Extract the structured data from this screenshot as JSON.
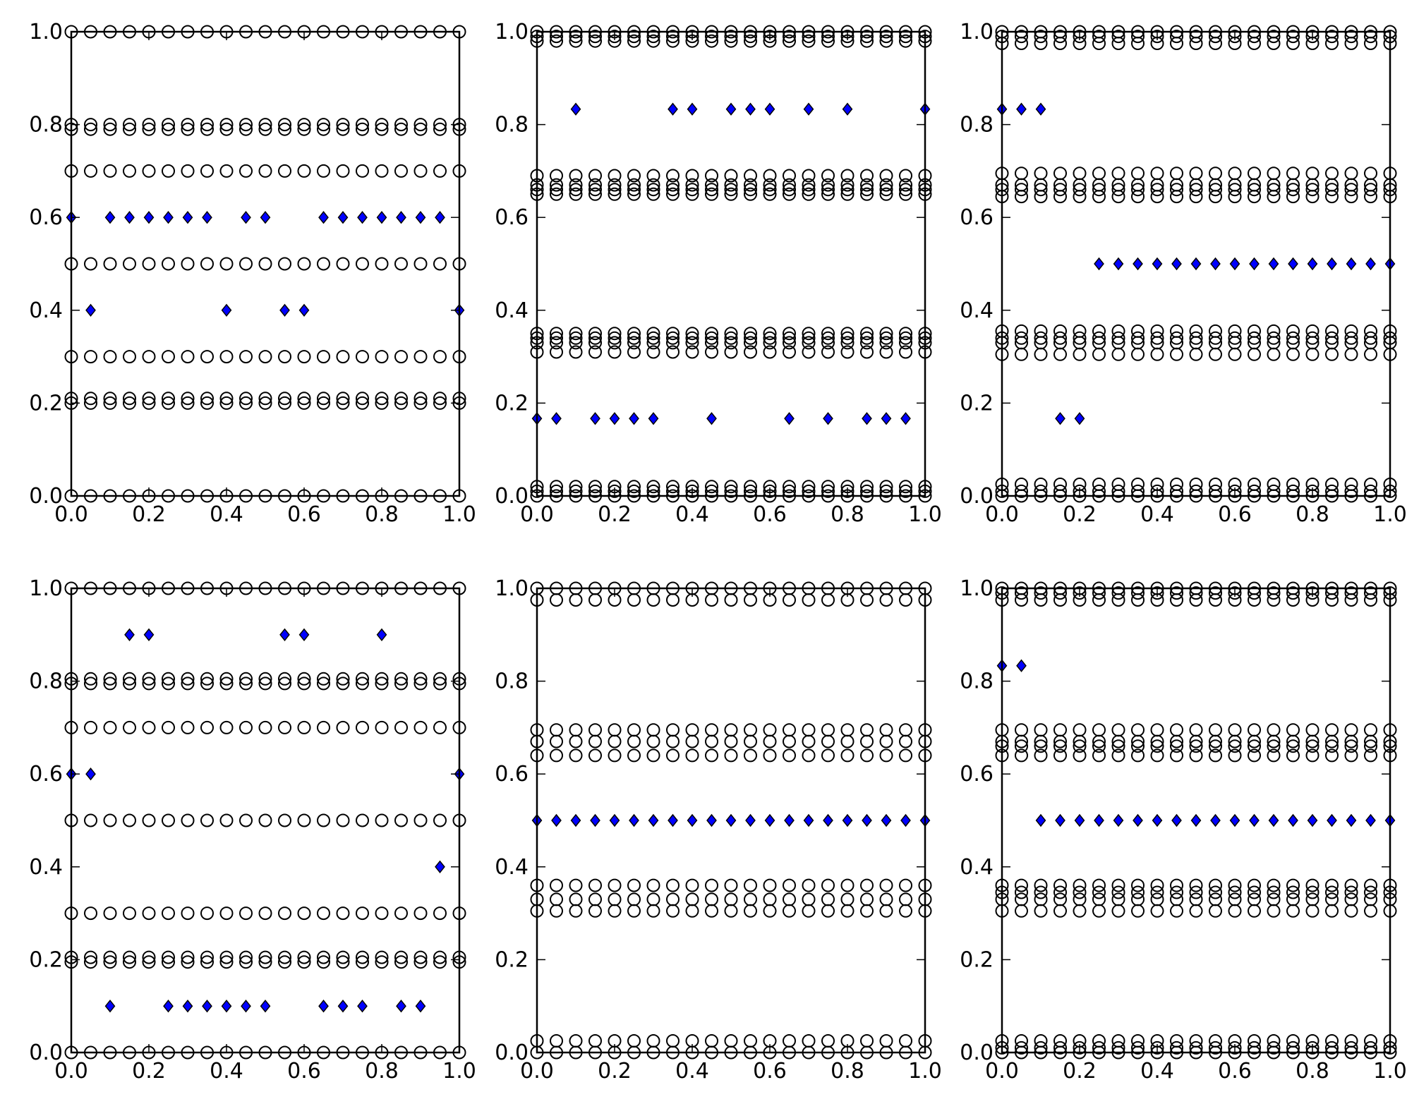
{
  "figure": {
    "layout": "2x3 grid",
    "marker_colors": {
      "circle_edge": "#000000",
      "circle_fill": "#ffffff",
      "diamond_fill": "#0000ff",
      "diamond_edge": "#000000"
    },
    "axis_ticks": [
      "0.0",
      "0.2",
      "0.4",
      "0.6",
      "0.8",
      "1.0"
    ]
  },
  "chart_data": [
    {
      "type": "scatter",
      "xlim": [
        0,
        1
      ],
      "ylim": [
        0,
        1
      ],
      "grid": false,
      "x_step": 0.05,
      "circle_rows": [
        0.0,
        0.2,
        0.21,
        0.3,
        0.5,
        0.7,
        0.79,
        0.8,
        1.0
      ],
      "diamonds": {
        "x": [
          0.0,
          0.05,
          0.1,
          0.15,
          0.2,
          0.25,
          0.3,
          0.35,
          0.4,
          0.45,
          0.5,
          0.55,
          0.6,
          0.65,
          0.7,
          0.75,
          0.8,
          0.85,
          0.9,
          0.95,
          1.0
        ],
        "y": [
          0.6,
          0.4,
          0.6,
          0.6,
          0.6,
          0.6,
          0.6,
          0.6,
          0.4,
          0.6,
          0.6,
          0.4,
          0.4,
          0.6,
          0.6,
          0.6,
          0.6,
          0.6,
          0.6,
          0.6,
          0.4
        ]
      }
    },
    {
      "type": "scatter",
      "xlim": [
        0,
        1
      ],
      "ylim": [
        0,
        1
      ],
      "grid": false,
      "x_step": 0.05,
      "circle_rows": [
        0.0,
        0.01,
        0.02,
        0.31,
        0.33,
        0.34,
        0.35,
        0.65,
        0.66,
        0.67,
        0.69,
        0.98,
        0.99,
        1.0
      ],
      "diamonds": {
        "x": [
          0.0,
          0.05,
          0.1,
          0.15,
          0.2,
          0.25,
          0.3,
          0.35,
          0.4,
          0.45,
          0.5,
          0.55,
          0.6,
          0.65,
          0.7,
          0.75,
          0.8,
          0.85,
          0.9,
          0.95,
          1.0
        ],
        "y": [
          0.1667,
          0.1667,
          0.8333,
          0.1667,
          0.1667,
          0.1667,
          0.1667,
          0.8333,
          0.8333,
          0.1667,
          0.8333,
          0.8333,
          0.8333,
          0.1667,
          0.8333,
          0.1667,
          0.8333,
          0.1667,
          0.1667,
          0.1667,
          0.8333
        ]
      }
    },
    {
      "type": "scatter",
      "xlim": [
        0,
        1
      ],
      "ylim": [
        0,
        1
      ],
      "grid": false,
      "x_step": 0.05,
      "circle_rows": [
        0.0,
        0.01,
        0.025,
        0.305,
        0.33,
        0.34,
        0.355,
        0.645,
        0.66,
        0.67,
        0.695,
        0.975,
        0.99,
        1.0
      ],
      "diamonds": {
        "x": [
          0.0,
          0.05,
          0.1,
          0.15,
          0.2,
          0.25,
          0.3,
          0.35,
          0.4,
          0.45,
          0.5,
          0.55,
          0.6,
          0.65,
          0.7,
          0.75,
          0.8,
          0.85,
          0.9,
          0.95,
          1.0
        ],
        "y": [
          0.8333,
          0.8333,
          0.8333,
          0.1667,
          0.1667,
          0.5,
          0.5,
          0.5,
          0.5,
          0.5,
          0.5,
          0.5,
          0.5,
          0.5,
          0.5,
          0.5,
          0.5,
          0.5,
          0.5,
          0.5,
          0.5
        ]
      }
    },
    {
      "type": "scatter",
      "xlim": [
        0,
        1
      ],
      "ylim": [
        0,
        1
      ],
      "grid": false,
      "x_step": 0.05,
      "circle_rows": [
        0.0,
        0.195,
        0.205,
        0.3,
        0.5,
        0.7,
        0.795,
        0.805,
        1.0
      ],
      "diamonds": {
        "x": [
          0.0,
          0.05,
          0.1,
          0.15,
          0.2,
          0.25,
          0.3,
          0.35,
          0.4,
          0.45,
          0.5,
          0.55,
          0.6,
          0.65,
          0.7,
          0.75,
          0.8,
          0.85,
          0.9,
          0.95,
          1.0
        ],
        "y": [
          0.6,
          0.6,
          0.1,
          0.9,
          0.9,
          0.1,
          0.1,
          0.1,
          0.1,
          0.1,
          0.1,
          0.9,
          0.9,
          0.1,
          0.1,
          0.1,
          0.9,
          0.1,
          0.1,
          0.4,
          0.6
        ]
      }
    },
    {
      "type": "scatter",
      "xlim": [
        0,
        1
      ],
      "ylim": [
        0,
        1
      ],
      "grid": false,
      "x_step": 0.05,
      "circle_rows": [
        0.0,
        0.025,
        0.305,
        0.33,
        0.36,
        0.64,
        0.67,
        0.695,
        0.975,
        1.0
      ],
      "diamonds": {
        "x": [
          0.0,
          0.05,
          0.1,
          0.15,
          0.2,
          0.25,
          0.3,
          0.35,
          0.4,
          0.45,
          0.5,
          0.55,
          0.6,
          0.65,
          0.7,
          0.75,
          0.8,
          0.85,
          0.9,
          0.95,
          1.0
        ],
        "y": [
          0.5,
          0.5,
          0.5,
          0.5,
          0.5,
          0.5,
          0.5,
          0.5,
          0.5,
          0.5,
          0.5,
          0.5,
          0.5,
          0.5,
          0.5,
          0.5,
          0.5,
          0.5,
          0.5,
          0.5,
          0.5
        ]
      }
    },
    {
      "type": "scatter",
      "xlim": [
        0,
        1
      ],
      "ylim": [
        0,
        1
      ],
      "grid": false,
      "x_step": 0.05,
      "circle_rows": [
        0.0,
        0.01,
        0.025,
        0.305,
        0.33,
        0.345,
        0.36,
        0.64,
        0.66,
        0.67,
        0.695,
        0.975,
        0.99,
        1.0
      ],
      "diamonds": {
        "x": [
          0.0,
          0.05,
          0.1,
          0.15,
          0.2,
          0.25,
          0.3,
          0.35,
          0.4,
          0.45,
          0.5,
          0.55,
          0.6,
          0.65,
          0.7,
          0.75,
          0.8,
          0.85,
          0.9,
          0.95,
          1.0
        ],
        "y": [
          0.8333,
          0.8333,
          0.5,
          0.5,
          0.5,
          0.5,
          0.5,
          0.5,
          0.5,
          0.5,
          0.5,
          0.5,
          0.5,
          0.5,
          0.5,
          0.5,
          0.5,
          0.5,
          0.5,
          0.5,
          0.5
        ]
      }
    }
  ]
}
